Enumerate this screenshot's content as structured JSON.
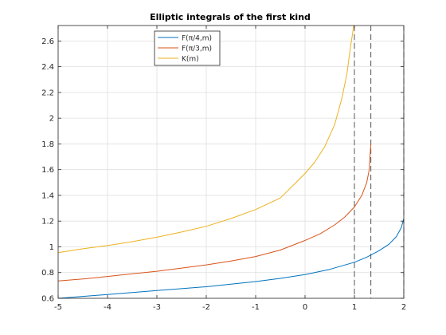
{
  "chart_data": {
    "type": "line",
    "title": "Elliptic integrals of the first kind",
    "xlabel": "",
    "ylabel": "",
    "xlim": [
      -5,
      2
    ],
    "ylim": [
      0.6,
      2.72
    ],
    "grid": true,
    "legend_position": "top-center",
    "x_ticks": [
      -5,
      -4,
      -3,
      -2,
      -1,
      0,
      1,
      2
    ],
    "x_tick_labels": [
      "-5",
      "-4",
      "-3",
      "-2",
      "-1",
      "0",
      "1",
      "2"
    ],
    "y_ticks": [
      0.6,
      0.8,
      1.0,
      1.2,
      1.4,
      1.6,
      1.8,
      2.0,
      2.2,
      2.4,
      2.6
    ],
    "y_tick_labels": [
      "0.6",
      "0.8",
      "1",
      "1.2",
      "1.4",
      "1.6",
      "1.8",
      "2",
      "2.2",
      "2.4",
      "2.6"
    ],
    "series": [
      {
        "name": "F(π/4,m)",
        "color": "#0072BD",
        "x": [
          -5,
          -4.5,
          -4,
          -3.5,
          -3,
          -2.5,
          -2,
          -1.5,
          -1,
          -0.5,
          0,
          0.5,
          1,
          1.25,
          1.5,
          1.7,
          1.85,
          1.95,
          2
        ],
        "y": [
          0.6,
          0.615,
          0.63,
          0.645,
          0.66,
          0.675,
          0.69,
          0.71,
          0.73,
          0.755,
          0.785,
          0.825,
          0.88,
          0.92,
          0.97,
          1.02,
          1.08,
          1.15,
          1.22
        ]
      },
      {
        "name": "F(π/3,m)",
        "color": "#D95319",
        "x": [
          -5,
          -4.5,
          -4,
          -3.5,
          -3,
          -2.5,
          -2,
          -1.5,
          -1,
          -0.5,
          0,
          0.3,
          0.6,
          0.8,
          1.0,
          1.15,
          1.25,
          1.3,
          1.333
        ],
        "y": [
          0.735,
          0.75,
          0.77,
          0.79,
          0.81,
          0.835,
          0.86,
          0.89,
          0.925,
          0.975,
          1.05,
          1.1,
          1.17,
          1.23,
          1.31,
          1.4,
          1.5,
          1.6,
          1.8
        ]
      },
      {
        "name": "K(m)",
        "color": "#EDB120",
        "x": [
          -5,
          -4.5,
          -4,
          -3.5,
          -3,
          -2.5,
          -2,
          -1.5,
          -1,
          -0.5,
          0,
          0.2,
          0.4,
          0.6,
          0.75,
          0.85,
          0.92,
          0.96,
          0.985
        ],
        "y": [
          0.955,
          0.985,
          1.01,
          1.04,
          1.075,
          1.115,
          1.16,
          1.22,
          1.29,
          1.38,
          1.57,
          1.66,
          1.78,
          1.95,
          2.16,
          2.35,
          2.55,
          2.65,
          2.72
        ]
      }
    ],
    "reference_lines": [
      {
        "x": 1,
        "style": "dashed",
        "color": "#555555"
      },
      {
        "x": 1.333,
        "style": "dashed",
        "color": "#555555"
      },
      {
        "x": 2,
        "style": "dashed",
        "color": "#555555"
      }
    ]
  }
}
